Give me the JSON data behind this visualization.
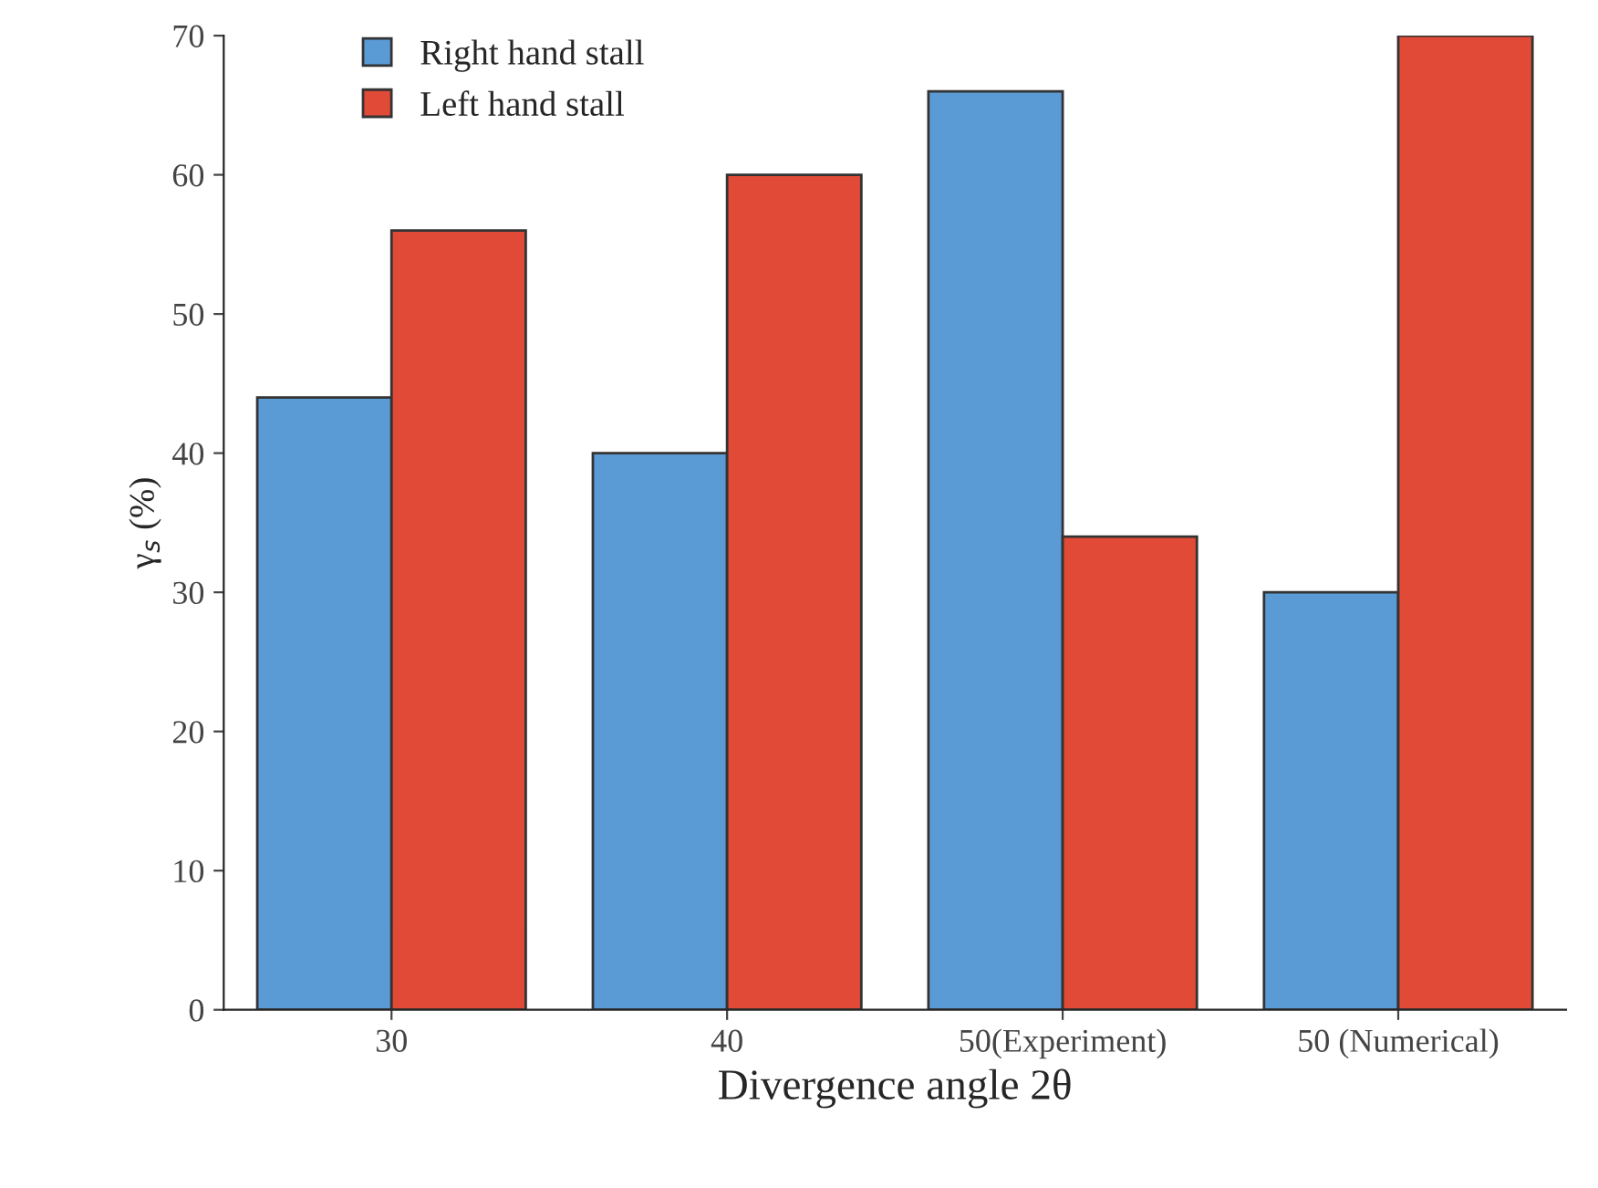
{
  "chart_data": {
    "type": "bar",
    "xlabel": "Divergence angle 2θ",
    "ylabel": "γ$_{s}$ (%)",
    "categories": [
      "30",
      "40",
      "50(Experiment)",
      "50 (Numerical)"
    ],
    "series": [
      {
        "name": "Right hand stall",
        "color": "#5b9bd5",
        "values": [
          44,
          40,
          66,
          30
        ]
      },
      {
        "name": "Left hand stall",
        "color": "#e04a36",
        "values": [
          56,
          60,
          34,
          70
        ]
      }
    ],
    "ylim": [
      0,
      70
    ],
    "yticks": [
      0,
      10,
      20,
      30,
      40,
      50,
      60,
      70
    ],
    "grid": false,
    "legend": "top left"
  }
}
